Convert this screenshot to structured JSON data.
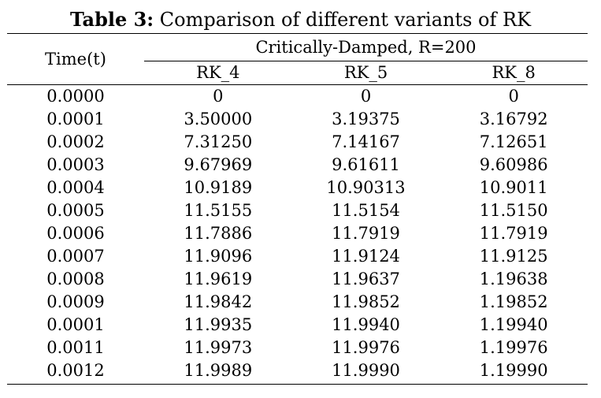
{
  "caption": {
    "label": "Table 3:",
    "text": " Comparison of different variants of RK"
  },
  "table": {
    "time_header": "Time(t)",
    "group_header": "Critically-Damped, R=200",
    "columns": [
      "RK_4",
      "RK_5",
      "RK_8"
    ],
    "rows": [
      [
        "0.0000",
        "0",
        "0",
        "0"
      ],
      [
        "0.0001",
        "3.50000",
        "3.19375",
        "3.16792"
      ],
      [
        "0.0002",
        "7.31250",
        "7.14167",
        "7.12651"
      ],
      [
        "0.0003",
        "9.67969",
        "9.61611",
        "9.60986"
      ],
      [
        "0.0004",
        "10.9189",
        "10.90313",
        "10.9011"
      ],
      [
        "0.0005",
        "11.5155",
        "11.5154",
        "11.5150"
      ],
      [
        "0.0006",
        "11.7886",
        "11.7919",
        "11.7919"
      ],
      [
        "0.0007",
        "11.9096",
        "11.9124",
        "11.9125"
      ],
      [
        "0.0008",
        "11.9619",
        "11.9637",
        "1.19638"
      ],
      [
        "0.0009",
        "11.9842",
        "11.9852",
        "1.19852"
      ],
      [
        "0.0001",
        "11.9935",
        "11.9940",
        "1.19940"
      ],
      [
        "0.0011",
        "11.9973",
        "11.9976",
        "1.19976"
      ],
      [
        "0.0012",
        "11.9989",
        "11.9990",
        "1.19990"
      ]
    ]
  }
}
